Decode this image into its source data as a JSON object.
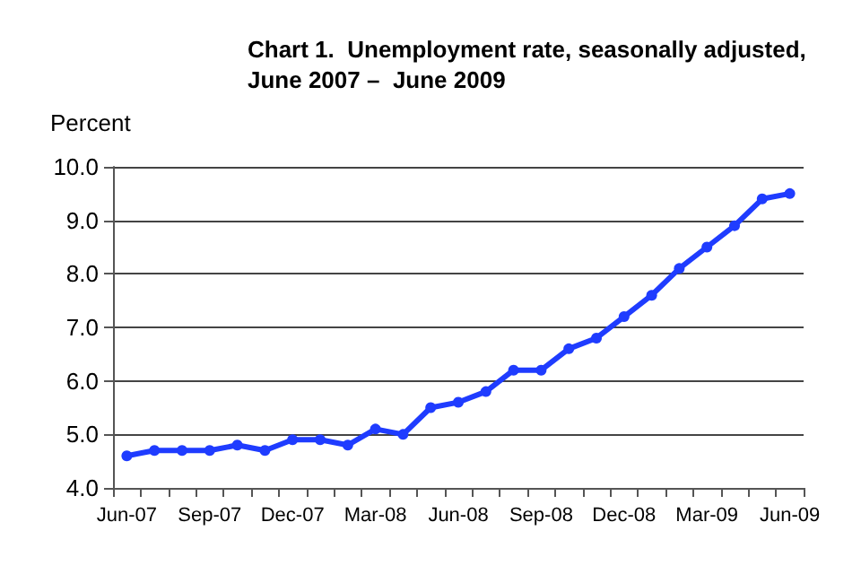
{
  "chart_data": {
    "type": "line",
    "title": "Chart 1.  Unemployment rate, seasonally adjusted,\nJune 2007 –  June 2009",
    "ylabel": "Percent",
    "categories": [
      "Jun-07",
      null,
      null,
      "Sep-07",
      null,
      null,
      "Dec-07",
      null,
      null,
      "Mar-08",
      null,
      null,
      "Jun-08",
      null,
      null,
      "Sep-08",
      null,
      null,
      "Dec-08",
      null,
      null,
      "Mar-09",
      null,
      null,
      "Jun-09"
    ],
    "series": [
      {
        "color": "#1f3cff",
        "values": [
          4.6,
          4.7,
          4.7,
          4.7,
          4.8,
          4.7,
          4.9,
          4.9,
          4.8,
          5.1,
          5.0,
          5.5,
          5.6,
          5.8,
          6.2,
          6.2,
          6.6,
          6.8,
          7.2,
          7.6,
          8.1,
          8.5,
          8.9,
          9.4,
          9.5
        ]
      }
    ],
    "ylim": [
      4,
      10
    ],
    "yticks": [
      {
        "value": 4,
        "label": "4.0"
      },
      {
        "value": 5,
        "label": "5.0"
      },
      {
        "value": 6,
        "label": "6.0"
      },
      {
        "value": 7,
        "label": "7.0"
      },
      {
        "value": 8,
        "label": "8.0"
      },
      {
        "value": 9,
        "label": "9.0"
      },
      {
        "value": 10,
        "label": "10.0"
      }
    ],
    "grid": "y",
    "marker": "circle",
    "line_style": "solid"
  }
}
